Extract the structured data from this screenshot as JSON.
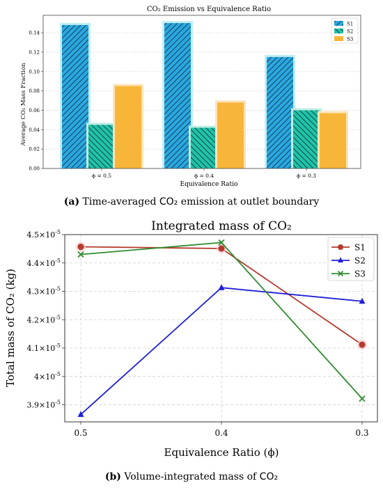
{
  "chart_data": [
    {
      "type": "bar",
      "title": "CO₂ Emission vs Equivalence Ratio",
      "xlabel": "Equivalence Ratio",
      "ylabel": "Average CO₂ Mass Fraction",
      "categories": [
        "ϕ = 0.5",
        "ϕ = 0.4",
        "ϕ = 0.3"
      ],
      "series": [
        {
          "name": "S1",
          "values": [
            0.148,
            0.15,
            0.115
          ],
          "color": "#29a8e0",
          "hatch": "diagonal"
        },
        {
          "name": "S2",
          "values": [
            0.045,
            0.042,
            0.06
          ],
          "color": "#1fc4a5",
          "hatch": "backslash"
        },
        {
          "name": "S3",
          "values": [
            0.085,
            0.068,
            0.057
          ],
          "color": "#f7b63a",
          "hatch": "none"
        }
      ],
      "ylim": [
        0,
        0.158
      ],
      "yticks": [
        0.0,
        0.02,
        0.04,
        0.06,
        0.08,
        0.1,
        0.12,
        0.14
      ],
      "ytick_labels": [
        "0.00",
        "0.02",
        "0.04",
        "0.06",
        "0.08",
        "0.10",
        "0.12",
        "0.14"
      ],
      "grid": true,
      "legend": "top-right"
    },
    {
      "type": "line",
      "title": "Integrated mass of CO₂",
      "xlabel": "Equivalence Ratio (ϕ)",
      "ylabel": "Total mass of CO₂ (kg)",
      "x": [
        "0.5",
        "0.4",
        "0.3"
      ],
      "series": [
        {
          "name": "S1",
          "values": [
            4.457e-05,
            4.451e-05,
            4.112e-05
          ],
          "color": "#b53a2e",
          "marker": "circle"
        },
        {
          "name": "S2",
          "values": [
            3.866e-05,
            4.313e-05,
            4.265e-05
          ],
          "color": "#1f1fd6",
          "marker": "triangle"
        },
        {
          "name": "S3",
          "values": [
            4.43e-05,
            4.472e-05,
            3.922e-05
          ],
          "color": "#2e8b2e",
          "marker": "x"
        }
      ],
      "ylim": [
        3.84e-05,
        4.5e-05
      ],
      "yticks": [
        3.9e-05,
        4e-05,
        4.1e-05,
        4.2e-05,
        4.3e-05,
        4.4e-05,
        4.5e-05
      ],
      "ytick_labels": [
        "3.9",
        "4",
        "4.1",
        "4.2",
        "4.3",
        "4.4",
        "4.5"
      ],
      "ytick_exponent": "-5",
      "grid": true,
      "legend": "top-right"
    }
  ],
  "captions": {
    "a_label": "(a)",
    "a_text": "Time-averaged",
    "a_species": "CO₂",
    "a_rest": "emission at outlet boundary",
    "b_label": "(b)",
    "b_text": "Volume-integrated mass of",
    "b_species": "CO₂"
  }
}
